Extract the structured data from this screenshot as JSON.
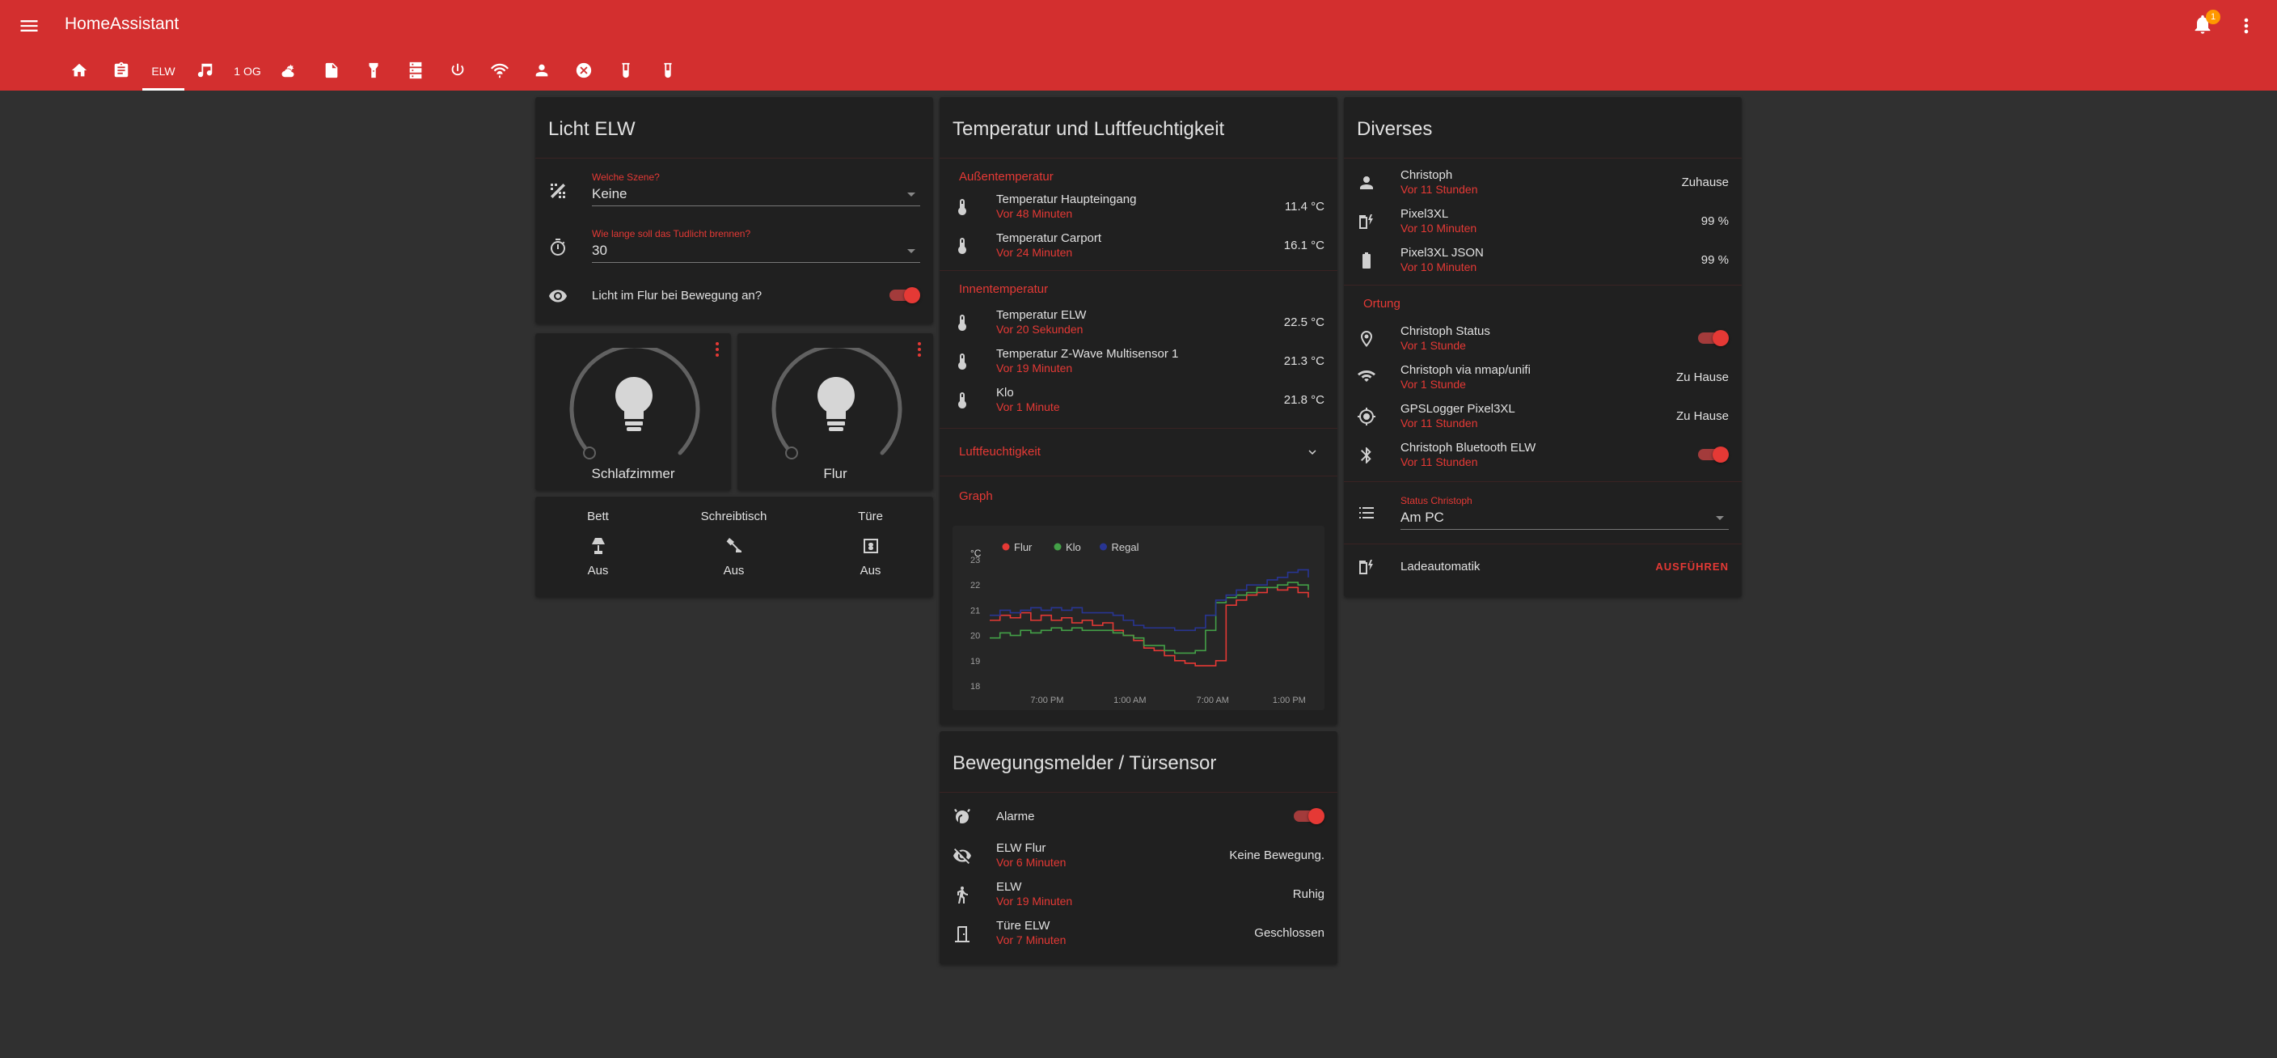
{
  "header": {
    "title": "HomeAssistant",
    "notification_count": "1",
    "tabs": [
      {
        "type": "icon",
        "icon": "home-icon"
      },
      {
        "type": "icon",
        "icon": "clipboard-icon"
      },
      {
        "type": "text",
        "label": "ELW",
        "active": true
      },
      {
        "type": "icon",
        "icon": "music-note-icon"
      },
      {
        "type": "text",
        "label": "1 OG"
      },
      {
        "type": "icon",
        "icon": "weather-partly-cloudy-icon"
      },
      {
        "type": "icon",
        "icon": "file-icon"
      },
      {
        "type": "icon",
        "icon": "flashlight-icon"
      },
      {
        "type": "icon",
        "icon": "server-icon"
      },
      {
        "type": "icon",
        "icon": "power-icon"
      },
      {
        "type": "icon",
        "icon": "access-point-network-icon"
      },
      {
        "type": "icon",
        "icon": "account-icon"
      },
      {
        "type": "icon",
        "icon": "close-circle-icon"
      },
      {
        "type": "icon",
        "icon": "test-tube-icon"
      },
      {
        "type": "icon",
        "icon": "test-tube-icon"
      }
    ]
  },
  "licht": {
    "title": "Licht ELW",
    "scene_label": "Welche Szene?",
    "scene_value": "Keine",
    "duration_label": "Wie lange soll das Tudlicht brennen?",
    "duration_value": "30",
    "motion_light_label": "Licht im Flur bei Bewegung an?",
    "motion_light_on": true
  },
  "lights": [
    {
      "name": "Schlafzimmer"
    },
    {
      "name": "Flur"
    }
  ],
  "glance": [
    {
      "name": "Bett",
      "icon": "lamp-icon",
      "state": "Aus"
    },
    {
      "name": "Schreibtisch",
      "icon": "desk-lamp-icon",
      "state": "Aus"
    },
    {
      "name": "Türe",
      "icon": "fan-icon",
      "state": "Aus"
    }
  ],
  "temperature": {
    "title": "Temperatur und Luftfeuchtigkeit",
    "outside_label": "Außentemperatur",
    "outside": [
      {
        "name": "Temperatur Haupteingang",
        "sub": "Vor 48 Minuten",
        "value": "11.4 °C"
      },
      {
        "name": "Temperatur Carport",
        "sub": "Vor 24 Minuten",
        "value": "16.1 °C"
      }
    ],
    "inside_label": "Innentemperatur",
    "inside": [
      {
        "name": "Temperatur ELW",
        "sub": "Vor 20 Sekunden",
        "value": "22.5 °C"
      },
      {
        "name": "Temperatur Z-Wave Multisensor 1",
        "sub": "Vor 19 Minuten",
        "value": "21.3 °C"
      },
      {
        "name": "Klo",
        "sub": "Vor 1 Minute",
        "value": "21.8 °C"
      }
    ],
    "humidity_label": "Luftfeuchtigkeit",
    "graph_label": "Graph"
  },
  "chart_data": {
    "type": "line",
    "ylabel": "°C",
    "ylim": [
      18,
      23
    ],
    "yticks": [
      18,
      19,
      20,
      21,
      22,
      23
    ],
    "xticks": [
      "7:00 PM",
      "1:00 AM",
      "7:00 AM",
      "1:00 PM"
    ],
    "legend_position": "top-left",
    "series": [
      {
        "name": "Flur",
        "color": "#e53935",
        "values": [
          20.6,
          20.8,
          20.7,
          20.9,
          20.6,
          20.8,
          20.6,
          20.7,
          20.5,
          20.6,
          20.4,
          20.5,
          20.2,
          20.0,
          19.8,
          19.5,
          19.4,
          19.2,
          19.0,
          18.9,
          18.8,
          18.8,
          19.0,
          21.2,
          21.4,
          21.6,
          21.7,
          21.9,
          21.8,
          21.9,
          21.7,
          21.5
        ]
      },
      {
        "name": "Klo",
        "color": "#43a047",
        "values": [
          19.9,
          20.1,
          20.0,
          20.2,
          20.1,
          20.2,
          20.3,
          20.2,
          20.3,
          20.2,
          20.2,
          20.2,
          20.1,
          20.0,
          19.9,
          19.6,
          19.6,
          19.4,
          19.3,
          19.3,
          19.4,
          20.2,
          21.3,
          21.5,
          21.6,
          21.7,
          21.9,
          21.9,
          22.0,
          22.1,
          22.0,
          21.8
        ]
      },
      {
        "name": "Regal",
        "color": "#283593",
        "values": [
          20.8,
          21.0,
          20.9,
          21.0,
          21.1,
          21.0,
          21.1,
          21.0,
          21.1,
          20.9,
          20.9,
          20.9,
          20.8,
          20.6,
          20.4,
          20.3,
          20.3,
          20.3,
          20.2,
          20.2,
          20.3,
          20.8,
          21.4,
          21.6,
          21.8,
          22.0,
          22.0,
          22.2,
          22.3,
          22.5,
          22.6,
          22.3
        ]
      }
    ]
  },
  "diverses": {
    "title": "Diverses",
    "people": [
      {
        "name": "Christoph",
        "sub": "Vor 11 Stunden",
        "value": "Zuhause",
        "icon": "account-icon"
      },
      {
        "name": "Pixel3XL",
        "sub": "Vor 10 Minuten",
        "value": "99 %",
        "icon": "battery-charging-icon"
      },
      {
        "name": "Pixel3XL JSON",
        "sub": "Vor 10 Minuten",
        "value": "99 %",
        "icon": "battery-icon"
      }
    ],
    "ortung_label": "Ortung",
    "ortung": [
      {
        "name": "Christoph Status",
        "sub": "Vor 1 Stunde",
        "toggle": true,
        "icon": "map-marker-icon"
      },
      {
        "name": "Christoph via nmap/unifi",
        "sub": "Vor 1 Stunde",
        "value": "Zu Hause",
        "icon": "wifi-icon"
      },
      {
        "name": "GPSLogger Pixel3XL",
        "sub": "Vor 11 Stunden",
        "value": "Zu Hause",
        "icon": "crosshairs-gps-icon"
      },
      {
        "name": "Christoph Bluetooth ELW",
        "sub": "Vor 11 Stunden",
        "toggle": true,
        "icon": "bluetooth-icon"
      }
    ],
    "status_label": "Status Christoph",
    "status_value": "Am PC",
    "auto_name": "Ladeautomatik",
    "auto_button": "AUSFÜHREN"
  },
  "motion": {
    "title": "Bewegungsmelder / Türsensor",
    "rows": [
      {
        "name": "Alarme",
        "toggle": true,
        "icon": "alarm-light-icon"
      },
      {
        "name": "ELW Flur",
        "sub": "Vor 6 Minuten",
        "value": "Keine Bewegung.",
        "icon": "eye-off-icon"
      },
      {
        "name": "ELW",
        "sub": "Vor 19 Minuten",
        "value": "Ruhig",
        "icon": "walk-icon"
      },
      {
        "name": "Türe ELW",
        "sub": "Vor 7 Minuten",
        "value": "Geschlossen",
        "icon": "door-icon"
      }
    ]
  }
}
